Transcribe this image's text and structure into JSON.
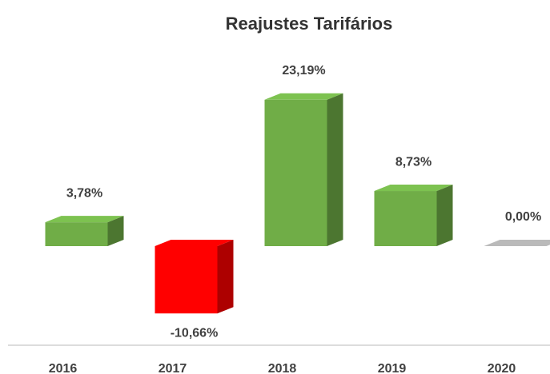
{
  "chart_data": {
    "type": "bar3d",
    "title": "Reajustes Tarifários",
    "categories": [
      "2016",
      "2017",
      "2018",
      "2019",
      "2020"
    ],
    "values": [
      3.78,
      -10.66,
      23.19,
      8.73,
      0.0
    ],
    "value_labels": [
      "3,78%",
      "-10,66%",
      "23,19%",
      "8,73%",
      "0,00%"
    ],
    "colors": [
      "#70ad47",
      "#ff0000",
      "#70ad47",
      "#70ad47",
      "#a6a6a6"
    ]
  }
}
